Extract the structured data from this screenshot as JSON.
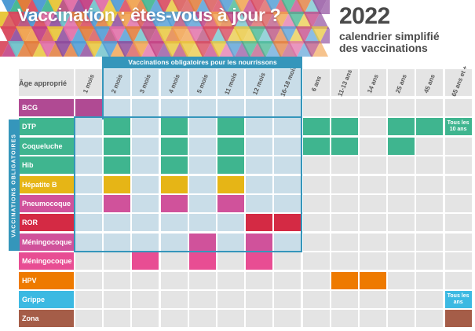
{
  "title": "Vaccination : êtes-vous à jour ?",
  "year": "2022",
  "subtitle_lines": [
    "calendrier simplifié",
    "des vaccinations"
  ],
  "age_header": "Âge approprié",
  "obligatory_top_label": "Vaccinations obligatoires pour les nourrissons",
  "obligatory_side_label": "VACCINATIONS OBLIGATOIRES",
  "columns": [
    "1 mois",
    "2 mois",
    "3 mois",
    "4 mois",
    "5 mois",
    "11 mois",
    "12 mois",
    "16-18 mois",
    "6 ans",
    "11-13 ans",
    "14 ans",
    "25 ans",
    "45 ans",
    "65 ans et +"
  ],
  "rows": [
    {
      "label": "BCG",
      "color": "#b04a93",
      "filled": [
        0
      ]
    },
    {
      "label": "DTP",
      "color": "#3fb58f",
      "filled": [
        1,
        3,
        5,
        8,
        9,
        11,
        12,
        13
      ]
    },
    {
      "label": "Coqueluche",
      "color": "#3fb58f",
      "filled": [
        1,
        3,
        5,
        8,
        9,
        11
      ]
    },
    {
      "label": "Hib",
      "color": "#3fb58f",
      "filled": [
        1,
        3,
        5
      ]
    },
    {
      "label": "Hépatite B",
      "color": "#e6b516",
      "filled": [
        1,
        3,
        5
      ]
    },
    {
      "label": "Pneumocoque",
      "color": "#d0529b",
      "filled": [
        1,
        3,
        5
      ]
    },
    {
      "label": "ROR",
      "color": "#d42a44",
      "filled": [
        6,
        7
      ]
    },
    {
      "label": "Méningocoque C",
      "color": "#d0529b",
      "filled": [
        4,
        6
      ]
    },
    {
      "label": "Méningocoque B",
      "color": "#e84d93",
      "filled": [
        2,
        4,
        6
      ]
    },
    {
      "label": "HPV",
      "color": "#ee7a00",
      "filled": [
        9,
        10
      ]
    },
    {
      "label": "Grippe",
      "color": "#3cb9e2",
      "filled": [
        13
      ]
    },
    {
      "label": "Zona",
      "color": "#a55d48",
      "filled": [
        13
      ]
    }
  ],
  "notes": [
    {
      "row": 1,
      "col": 13,
      "text": "Tous les 10 ans"
    },
    {
      "row": 10,
      "col": 13,
      "text": "Tous les ans"
    }
  ],
  "colors": {
    "empty_cell": "#e4e4e4",
    "highlight_cell": "#c9dde8",
    "obligatory_blue": "#3596bb",
    "heading_gray": "#4a4a4a"
  }
}
